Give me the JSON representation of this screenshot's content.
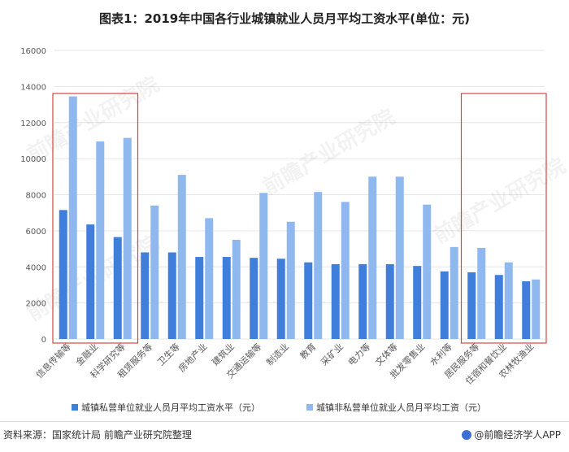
{
  "page_title": "图表1：2019年中国各行业城镇就业人员月平均工资水平(单位：元)",
  "source_text": "资料来源：国家统计局 前瞻产业研究院整理",
  "brand_text": "@前瞻经济学人APP",
  "watermark_text": "前瞻产业研究院",
  "colors": {
    "series1": "#3f7fdb",
    "series2": "#8fb8ef",
    "highlight_box": "#d64545",
    "grid": "#e6e6e6",
    "axis_text": "#595959"
  },
  "chart_data": {
    "type": "bar",
    "title": "图表1：2019年中国各行业城镇就业人员月平均工资水平(单位：元)",
    "categories": [
      "信息传输等",
      "金融业",
      "科学研究等",
      "租赁服务等",
      "卫生等",
      "房地产业",
      "建筑业",
      "交通运输等",
      "制造业",
      "教育",
      "采矿业",
      "电力等",
      "文体等",
      "批发零售业",
      "水利等",
      "居民服务等",
      "住宿和餐饮业",
      "农林牧渔业"
    ],
    "series": [
      {
        "name": "城镇私营单位就业人员月平均工资水平（元）",
        "values": [
          7150,
          6350,
          5650,
          4800,
          4800,
          4550,
          4550,
          4500,
          4450,
          4250,
          4150,
          4150,
          4150,
          4050,
          3750,
          3700,
          3550,
          3200
        ]
      },
      {
        "name": "城镇非私营单位就业人员月平均工资（元）",
        "values": [
          13450,
          10950,
          11150,
          7400,
          9100,
          6700,
          5500,
          8100,
          6500,
          8150,
          7600,
          9000,
          9000,
          7450,
          5100,
          5050,
          4250,
          3300
        ]
      }
    ],
    "ylim": [
      0,
      16000
    ],
    "yticks": [
      0,
      2000,
      4000,
      6000,
      8000,
      10000,
      12000,
      14000,
      16000
    ],
    "grid": true,
    "legend_position": "bottom",
    "highlight_groups": [
      [
        0,
        2
      ],
      [
        15,
        17
      ]
    ]
  }
}
